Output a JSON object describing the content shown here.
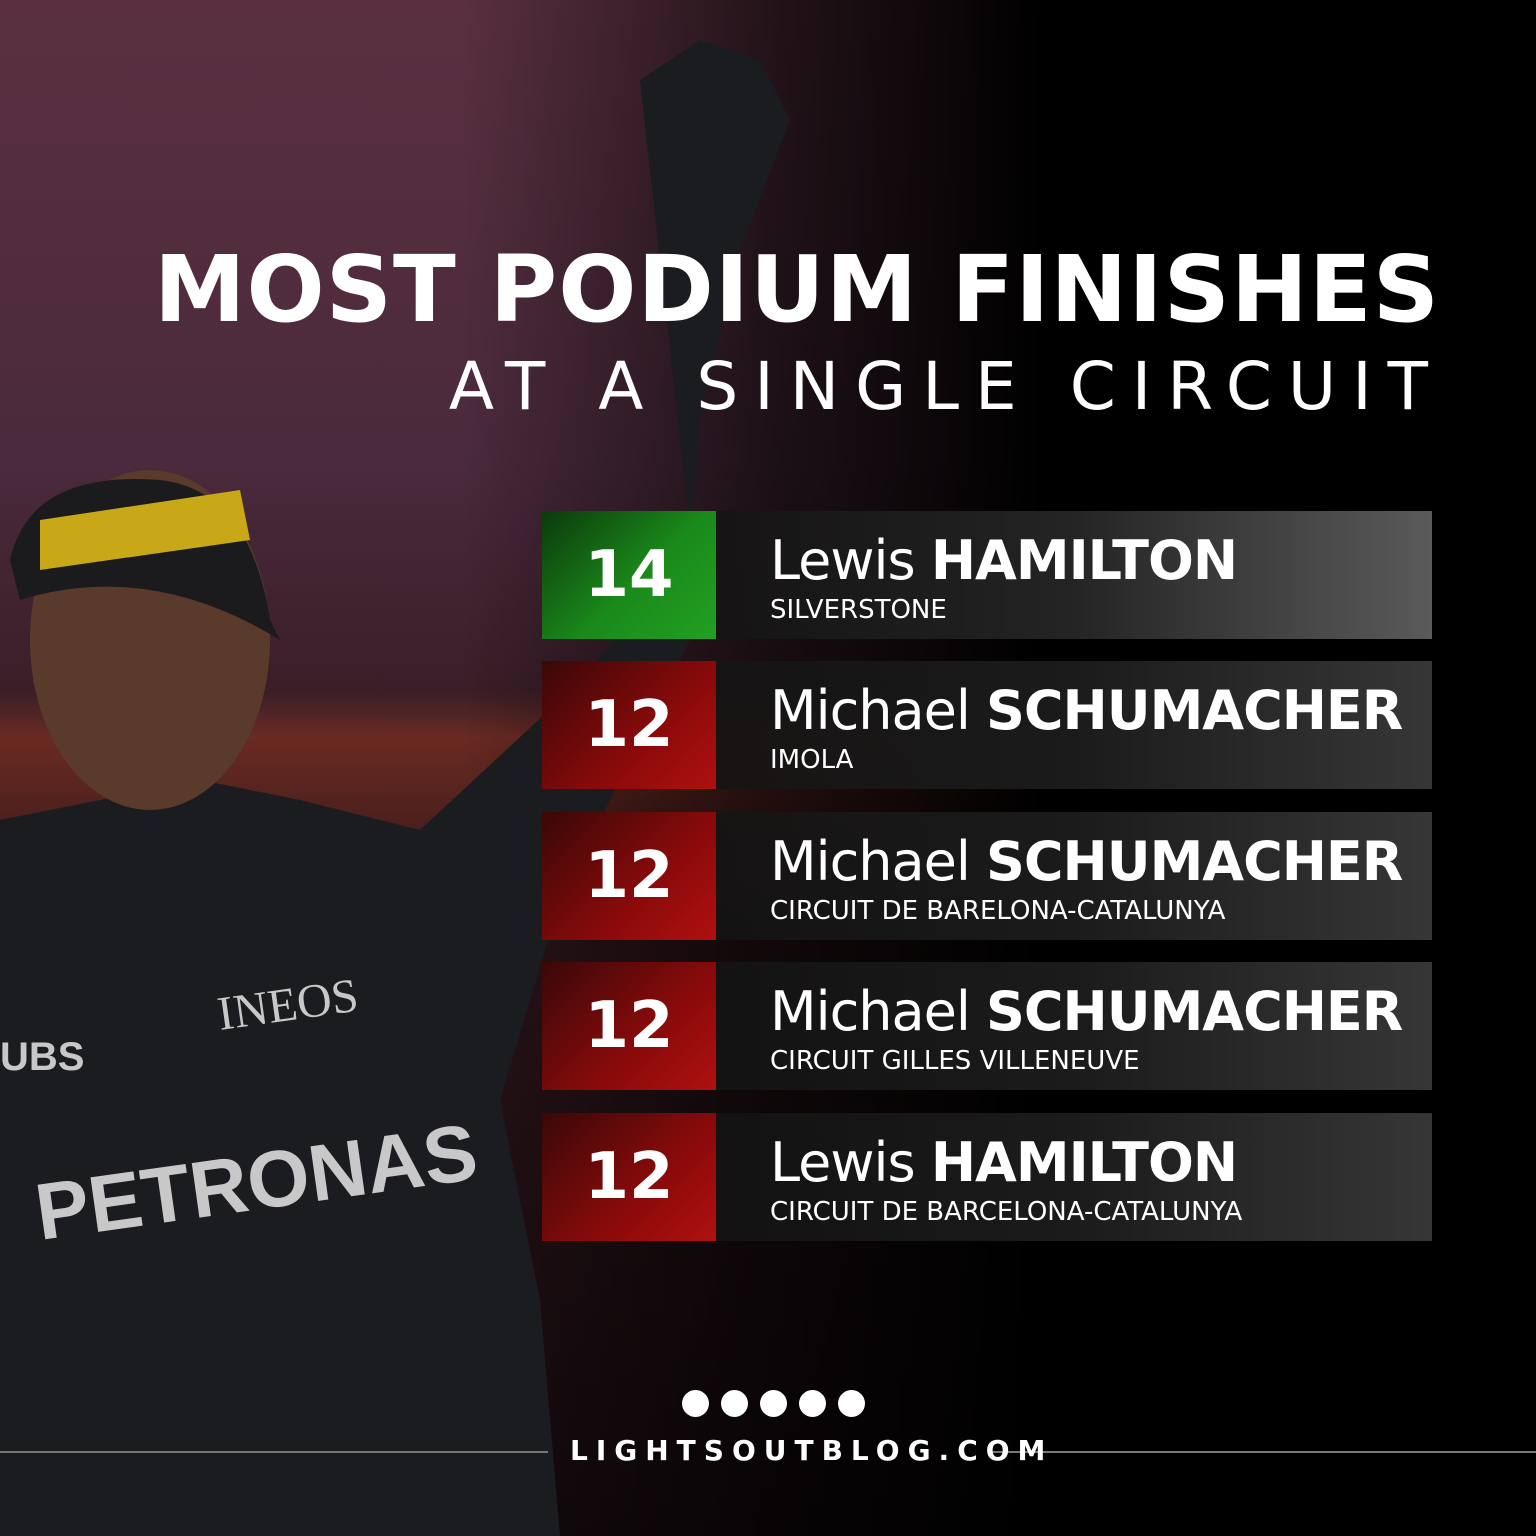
{
  "title": "MOST PODIUM FINISHES",
  "subtitle": "AT A SINGLE CIRCUIT",
  "colors": {
    "leader": "#1a8a1a",
    "others": "#8a0a0a",
    "background": "#000000"
  },
  "entries": [
    {
      "count": "14",
      "first": "Lewis",
      "last": "HAMILTON",
      "circuit": "SILVERSTONE"
    },
    {
      "count": "12",
      "first": "Michael",
      "last": "SCHUMACHER",
      "circuit": "IMOLA"
    },
    {
      "count": "12",
      "first": "Michael",
      "last": "SCHUMACHER",
      "circuit": "CIRCUIT DE BARELONA-CATALUNYA"
    },
    {
      "count": "12",
      "first": "Michael",
      "last": "SCHUMACHER",
      "circuit": "CIRCUIT GILLES VILLENEUVE"
    },
    {
      "count": "12",
      "first": "Lewis",
      "last": "HAMILTON",
      "circuit": "CIRCUIT DE BARCELONA-CATALUNYA"
    }
  ],
  "footer": {
    "site": "LIGHTSOUTBLOG.COM",
    "dots_icon": "five-dots-logo"
  },
  "photo": {
    "sponsors": [
      "PETRONAS",
      "INEOS",
      "UBS"
    ]
  }
}
